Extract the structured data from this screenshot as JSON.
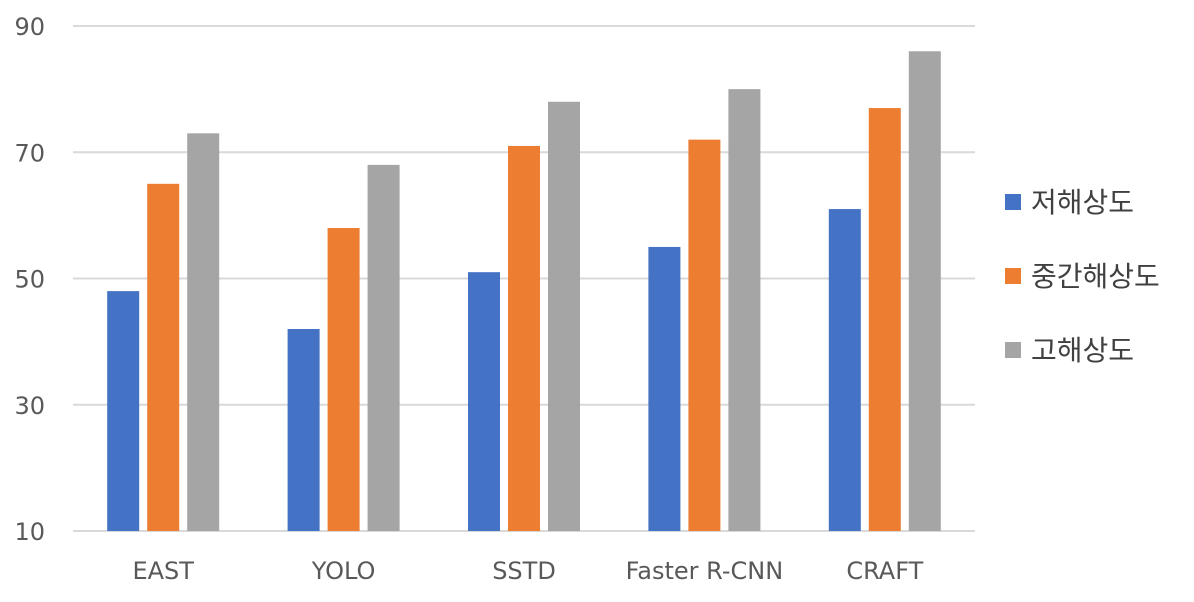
{
  "chart_data": {
    "type": "bar",
    "categories": [
      "EAST",
      "YOLO",
      "SSTD",
      "Faster R-CNN",
      "CRAFT"
    ],
    "series": [
      {
        "name": "저해상도",
        "color": "#4472C4",
        "values": [
          48,
          42,
          51,
          55,
          61
        ]
      },
      {
        "name": "중간해상도",
        "color": "#ED7D31",
        "values": [
          65,
          58,
          71,
          72,
          77
        ]
      },
      {
        "name": "고해상도",
        "color": "#A5A5A5",
        "values": [
          73,
          68,
          78,
          80,
          86
        ]
      }
    ],
    "ylim": [
      10,
      90
    ],
    "yticks": [
      10,
      30,
      50,
      70,
      90
    ],
    "grid": true,
    "legend": "right",
    "gridColor": "#D9D9D9"
  }
}
